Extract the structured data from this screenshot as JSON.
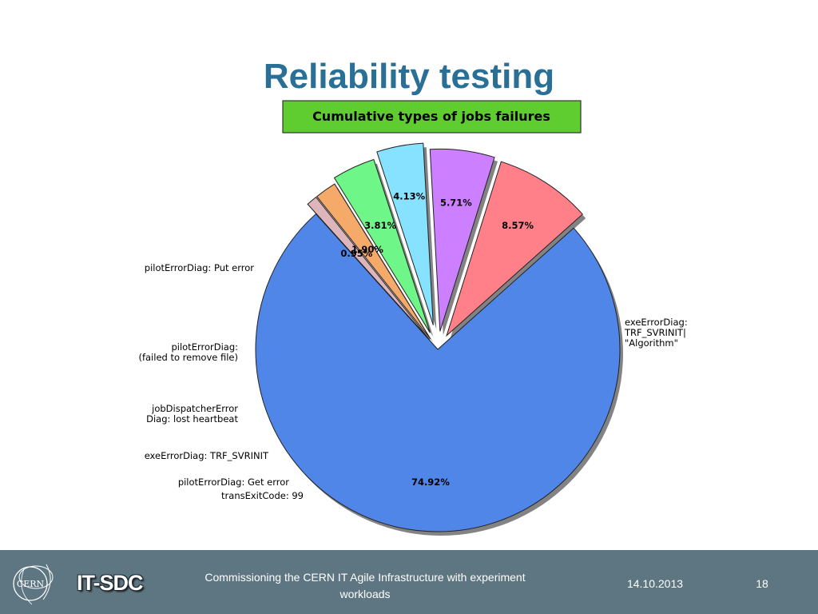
{
  "slide": {
    "title": "Reliability testing",
    "footer_text": "Commissioning the CERN IT Agile Infrastructure with experiment workloads",
    "date": "14.10.2013",
    "page_number": "18",
    "brand": "IT-SDC",
    "logo_text": "CERN"
  },
  "colors": {
    "title": "#2a7096",
    "footer_bg": "#5e7682",
    "chart_title_bg": "#5fcd30"
  },
  "chart_data": {
    "type": "pie",
    "title": "Cumulative types of jobs failures",
    "slices": [
      {
        "label": "exeErrorDiag:\nTRF_SVRINIT|\n\"Algorithm\"",
        "value": 74.92,
        "pct_label": "74.92%",
        "color": "#4f86e7"
      },
      {
        "label": "pilotErrorDiag: Put error",
        "value": 8.57,
        "pct_label": "8.57%",
        "color": "#ff8088"
      },
      {
        "label": "pilotErrorDiag:\n(failed to remove file)",
        "value": 5.71,
        "pct_label": "5.71%",
        "color": "#cc80ff"
      },
      {
        "label": "jobDispatcherError\nDiag: lost heartbeat",
        "value": 4.13,
        "pct_label": "4.13%",
        "color": "#87e2ff"
      },
      {
        "label": "exeErrorDiag: TRF_SVRINIT",
        "value": 3.81,
        "pct_label": "3.81%",
        "color": "#6ef788"
      },
      {
        "label": "pilotErrorDiag: Get error",
        "value": 1.9,
        "pct_label": "1.90%",
        "color": "#f5aa6a"
      },
      {
        "label": "transExitCode: 99",
        "value": 0.95,
        "pct_label": "0.95%",
        "color": "#deb5bb"
      }
    ]
  }
}
